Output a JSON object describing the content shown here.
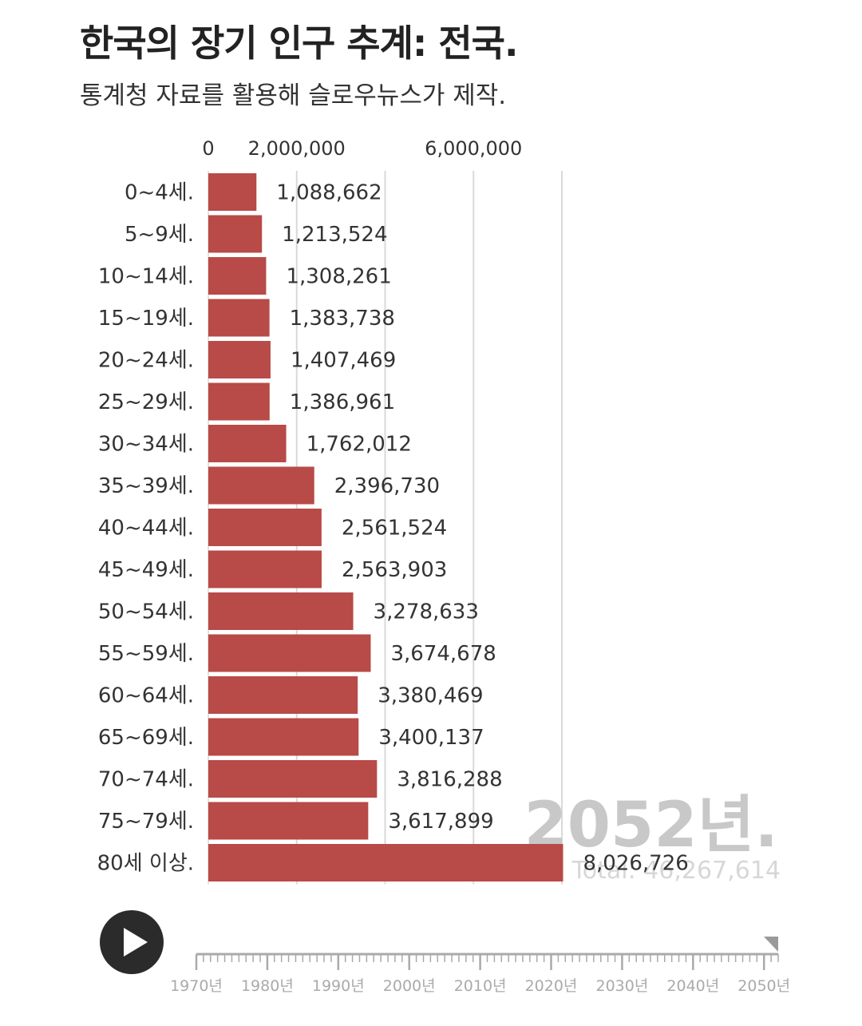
{
  "header": {
    "title": "한국의 장기 인구 추계: 전국.",
    "subtitle": "통계청 자료를 활용해 슬로우뉴스가 제작."
  },
  "chart_data": {
    "type": "bar",
    "orientation": "horizontal",
    "categories": [
      "0~4세.",
      "5~9세.",
      "10~14세.",
      "15~19세.",
      "20~24세.",
      "25~29세.",
      "30~34세.",
      "35~39세.",
      "40~44세.",
      "45~49세.",
      "50~54세.",
      "55~59세.",
      "60~64세.",
      "65~69세.",
      "70~74세.",
      "75~79세.",
      "80세 이상."
    ],
    "values": [
      1088662,
      1213524,
      1308261,
      1383738,
      1407469,
      1386961,
      1762012,
      2396730,
      2561524,
      2563903,
      3278633,
      3674678,
      3380469,
      3400137,
      3816288,
      3617899,
      8026726
    ],
    "value_labels": [
      "1,088,662",
      "1,213,524",
      "1,308,261",
      "1,383,738",
      "1,407,469",
      "1,386,961",
      "1,762,012",
      "2,396,730",
      "2,561,524",
      "2,563,903",
      "3,278,633",
      "3,674,678",
      "3,380,469",
      "3,400,137",
      "3,816,288",
      "3,617,899",
      "8,026,726"
    ],
    "xlim": [
      0,
      8000000
    ],
    "grid_values": [
      2000000,
      4000000,
      6000000,
      8000000
    ],
    "x_ticks": [
      {
        "value": 0,
        "label": "0"
      },
      {
        "value": 2000000,
        "label": "2,000,000"
      },
      {
        "value": 6000000,
        "label": "6,000,000"
      }
    ],
    "grid": true,
    "bar_color": "#b84a47",
    "year_label": "2052년.",
    "total_label": "Total: 46,267,614"
  },
  "timeline": {
    "labels": [
      "1970년",
      "1980년",
      "1990년",
      "2000년",
      "2010년",
      "2020년",
      "2030년",
      "2040년",
      "2050년"
    ],
    "start_year": 1970,
    "end_year": 2052,
    "current_year": 2052
  },
  "controls": {
    "play_icon": "play-icon"
  }
}
